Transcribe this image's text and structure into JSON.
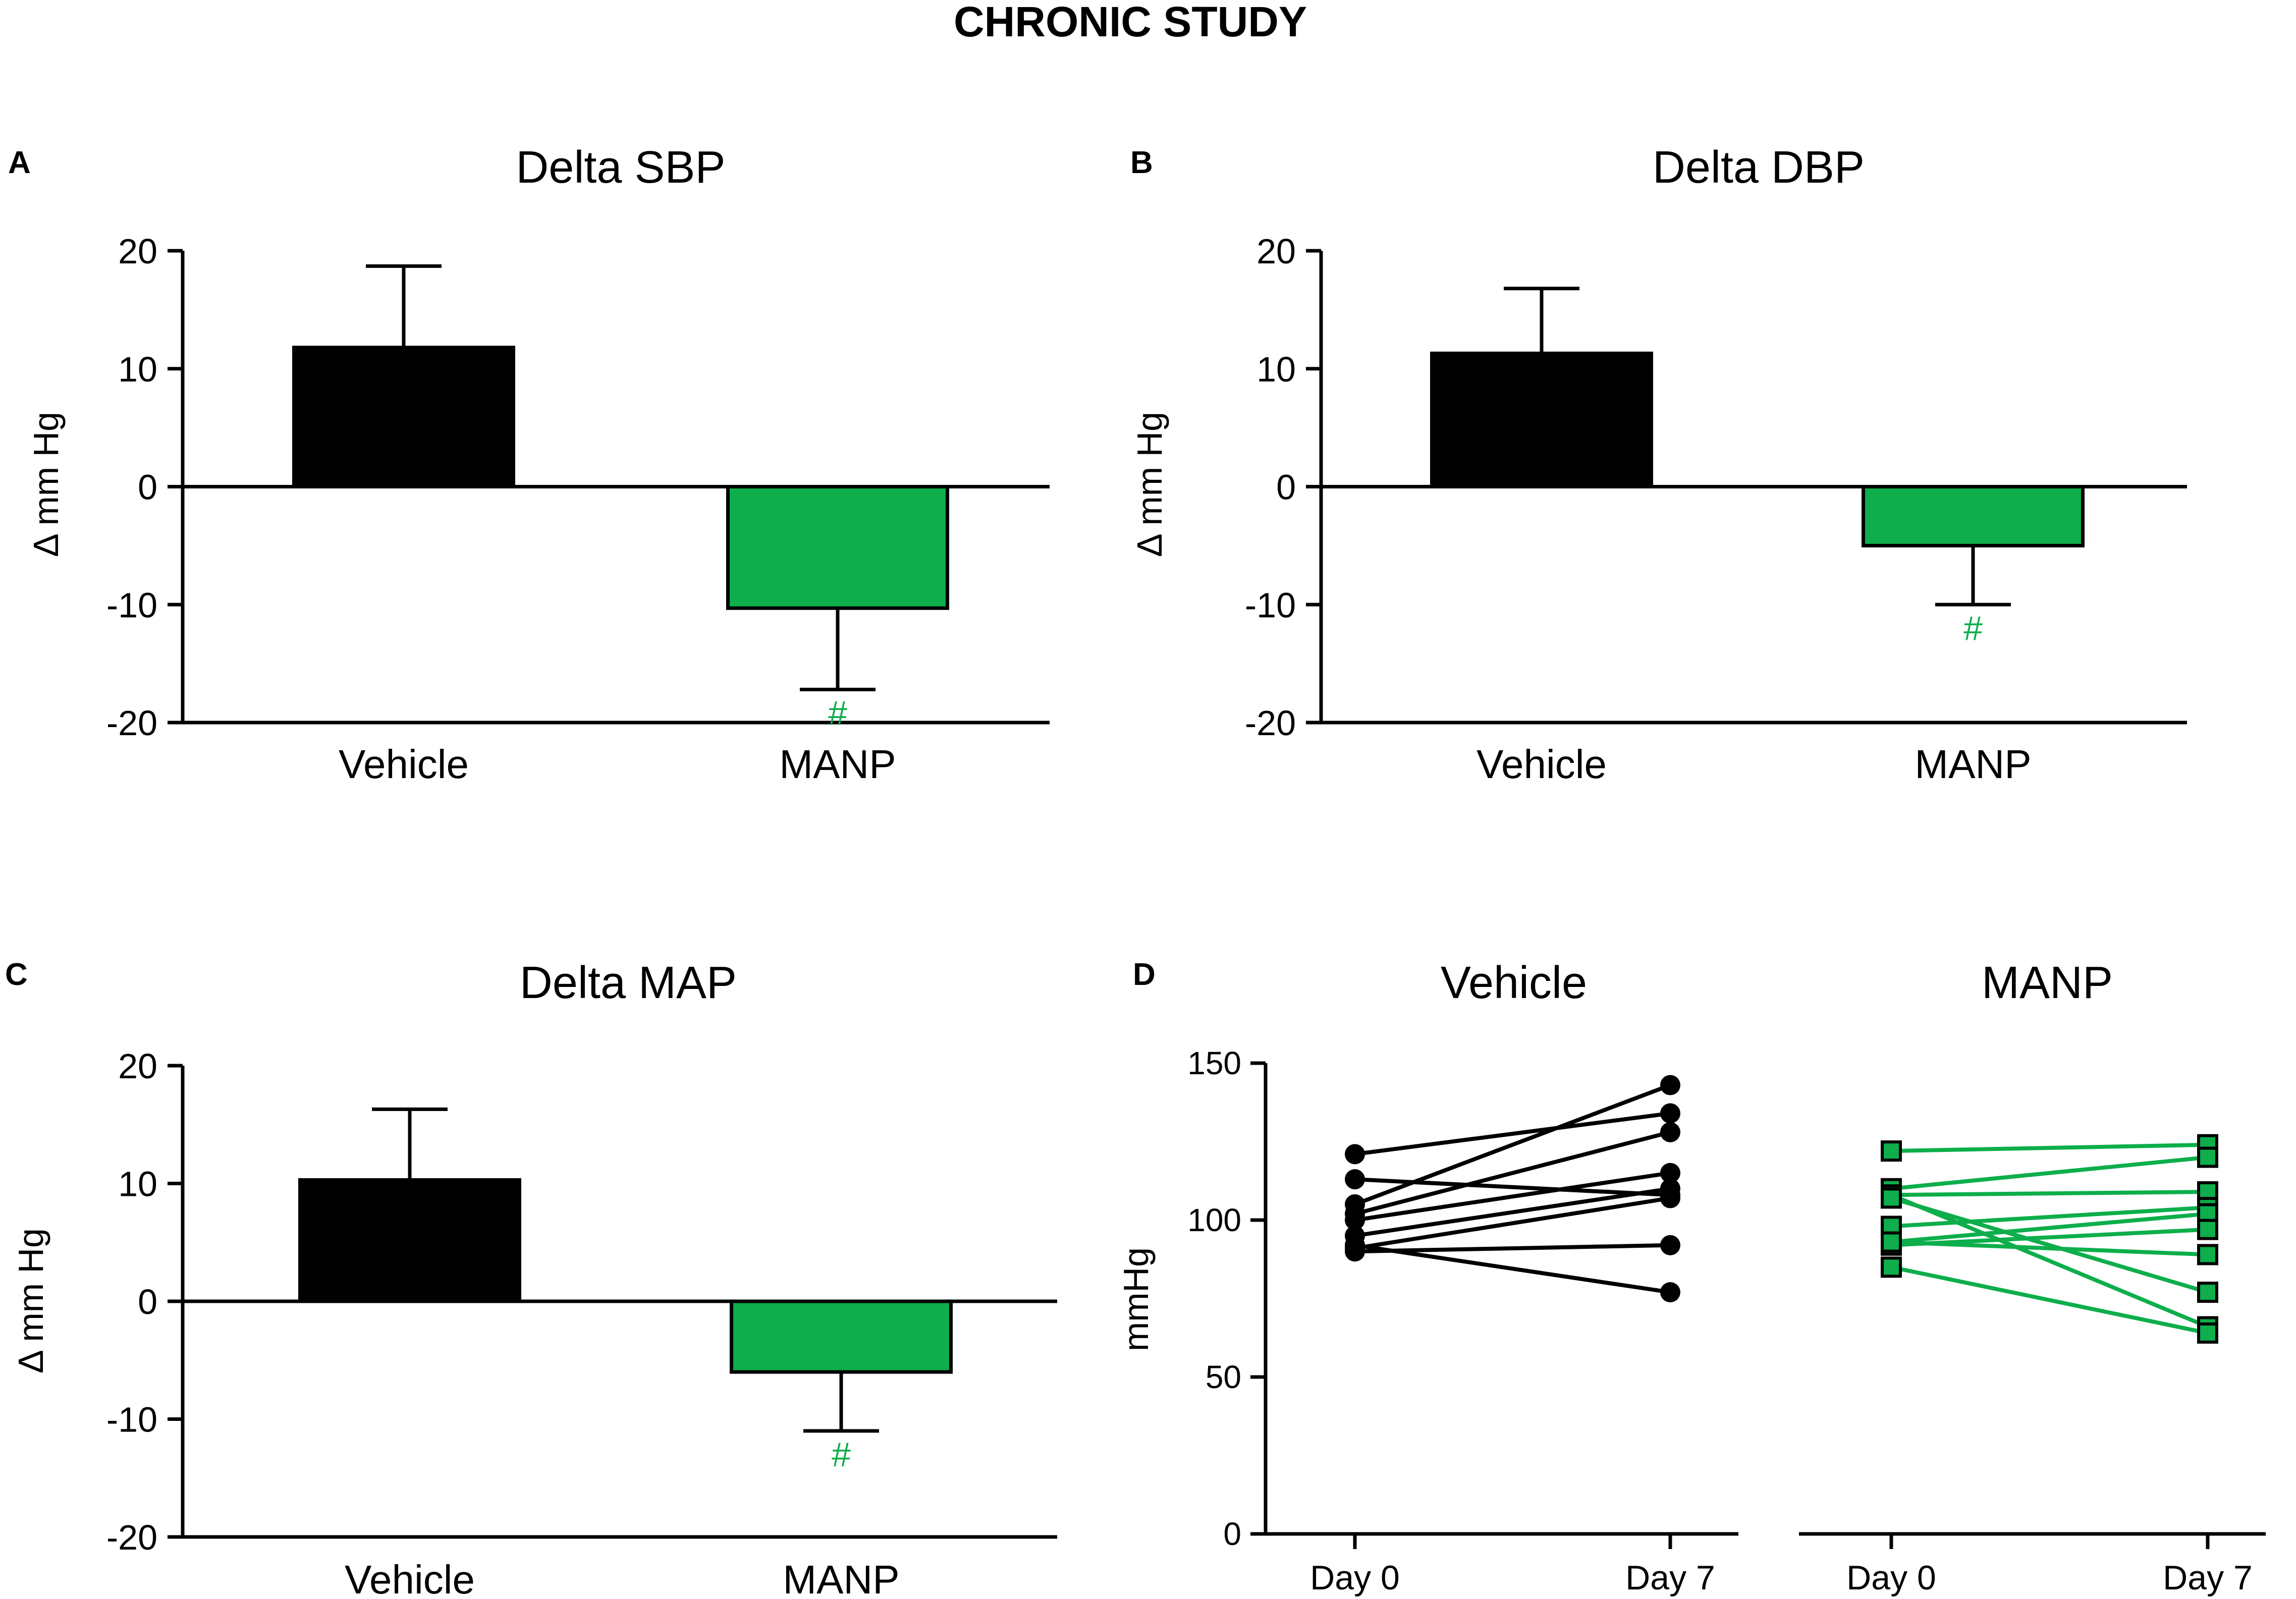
{
  "figure": {
    "title": "CHRONIC STUDY"
  },
  "colors": {
    "vehicle": "#000000",
    "manp": "#0dae4b",
    "axis": "#000000",
    "background": "#ffffff"
  },
  "chart_data": [
    {
      "panel": "A",
      "type": "bar",
      "title": "Delta SBP",
      "ylabel": "Δ mm Hg",
      "xlabel": "",
      "ylim": [
        -20,
        20
      ],
      "yticks": [
        20,
        10,
        0,
        -10,
        -20
      ],
      "ytick_labels": [
        "20",
        "10",
        "0",
        "-10",
        "-20"
      ],
      "categories": [
        "Vehicle",
        "MANP"
      ],
      "values": [
        11.8,
        -10.3
      ],
      "errors": [
        6.9,
        6.9
      ],
      "colors": [
        "#000000",
        "#0dae4b"
      ],
      "annotations": [
        {
          "category": "MANP",
          "text": "#"
        }
      ]
    },
    {
      "panel": "B",
      "type": "bar",
      "title": "Delta DBP",
      "ylabel": "Δ mm Hg",
      "xlabel": "",
      "ylim": [
        -20,
        20
      ],
      "yticks": [
        20,
        10,
        0,
        -10,
        -20
      ],
      "ytick_labels": [
        "20",
        "10",
        "0",
        "-10",
        "-20"
      ],
      "categories": [
        "Vehicle",
        "MANP"
      ],
      "values": [
        11.3,
        -5.0
      ],
      "errors": [
        5.5,
        5.0
      ],
      "colors": [
        "#000000",
        "#0dae4b"
      ],
      "annotations": [
        {
          "category": "MANP",
          "text": "#"
        }
      ]
    },
    {
      "panel": "C",
      "type": "bar",
      "title": "Delta MAP",
      "ylabel": "Δ mm Hg",
      "xlabel": "",
      "ylim": [
        -20,
        20
      ],
      "yticks": [
        20,
        10,
        0,
        -10,
        -20
      ],
      "ytick_labels": [
        "20",
        "10",
        "0",
        "-10",
        "-20"
      ],
      "categories": [
        "Vehicle",
        "MANP"
      ],
      "values": [
        10.3,
        -6.0
      ],
      "errors": [
        6.0,
        5.0
      ],
      "colors": [
        "#000000",
        "#0dae4b"
      ],
      "annotations": [
        {
          "category": "MANP",
          "text": "#"
        }
      ]
    },
    {
      "panel": "D",
      "type": "line",
      "ylabel": "mmHg",
      "ylim": [
        0,
        150
      ],
      "yticks": [
        150,
        100,
        50,
        0
      ],
      "ytick_labels": [
        "150",
        "100",
        "50",
        "0"
      ],
      "subplots": [
        {
          "title": "Vehicle",
          "categories": [
            "Day 0",
            "Day 7"
          ],
          "marker": "circle",
          "color": "#000000",
          "pairs": [
            [
              121,
              134
            ],
            [
              113,
              108
            ],
            [
              105,
              143
            ],
            [
              102,
              128
            ],
            [
              100,
              115
            ],
            [
              95,
              110
            ],
            [
              92,
              77
            ],
            [
              90,
              92
            ],
            [
              91,
              107
            ]
          ]
        },
        {
          "title": "MANP",
          "categories": [
            "Day 0",
            "Day 7"
          ],
          "marker": "square",
          "color": "#0dae4b",
          "pairs": [
            [
              122,
              124
            ],
            [
              110,
              120
            ],
            [
              108,
              109
            ],
            [
              108,
              66
            ],
            [
              98,
              104
            ],
            [
              93,
              102
            ],
            [
              92,
              97
            ],
            [
              93,
              89
            ],
            [
              85,
              64
            ],
            [
              107,
              77
            ]
          ]
        }
      ]
    }
  ]
}
